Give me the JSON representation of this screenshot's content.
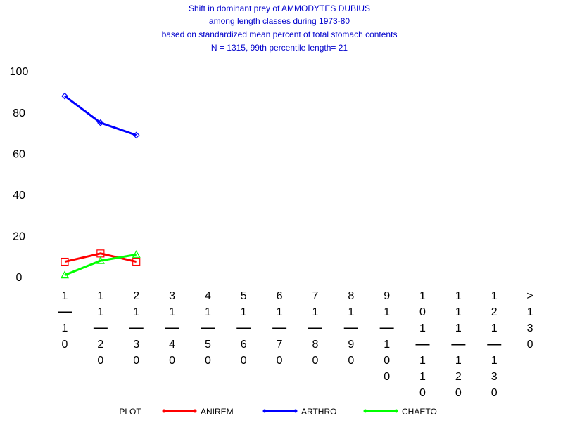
{
  "chart_data": {
    "type": "line",
    "title": "Shift in dominant prey of AMMODYTES DUBIUS",
    "subtitle": [
      "among length classes during 1973-80",
      "based on standardized mean percent of  total stomach contents",
      "N =  1315, 99th percentile  length= 21"
    ],
    "categories": [
      "1-10",
      "11-20",
      "21-30",
      "31-40",
      "41-50",
      "51-60",
      "61-70",
      "71-80",
      "81-90",
      "91-100",
      "101-110",
      "111-120",
      "121-130",
      ">130"
    ],
    "series": [
      {
        "name": "ANIREM",
        "color": "#ff0000",
        "marker": "square",
        "values": [
          8,
          12,
          8,
          null,
          null,
          null,
          null,
          null,
          null,
          null,
          null,
          null,
          null,
          null
        ]
      },
      {
        "name": "ARTHRO",
        "color": "#0000ff",
        "marker": "diamond",
        "values": [
          88.5,
          75.5,
          69.5,
          null,
          null,
          null,
          null,
          null,
          null,
          null,
          null,
          null,
          null,
          null
        ]
      },
      {
        "name": "CHAETO",
        "color": "#00ff00",
        "marker": "triangle",
        "values": [
          1.5,
          8.5,
          11.5,
          null,
          null,
          null,
          null,
          null,
          null,
          null,
          null,
          null,
          null,
          null
        ]
      }
    ],
    "legend_title": "PLOT",
    "legend": "bottom",
    "ylim": [
      0,
      100
    ],
    "yticks": [
      0,
      20,
      40,
      60,
      80,
      100
    ],
    "grid": false
  }
}
